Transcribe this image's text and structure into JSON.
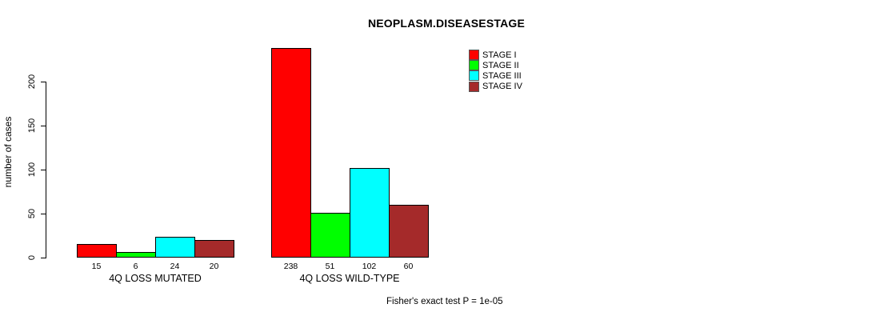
{
  "chart_data": {
    "type": "bar",
    "title": "NEOPLASM.DISEASESTAGE",
    "groups": [
      "4Q LOSS MUTATED",
      "4Q LOSS WILD-TYPE"
    ],
    "series": [
      {
        "name": "STAGE I",
        "color": "#ff0000",
        "values": [
          15,
          238
        ]
      },
      {
        "name": "STAGE II",
        "color": "#00ff00",
        "values": [
          6,
          51
        ]
      },
      {
        "name": "STAGE III",
        "color": "#00ffff",
        "values": [
          24,
          102
        ]
      },
      {
        "name": "STAGE IV",
        "color": "#a52a2a",
        "values": [
          20,
          60
        ]
      }
    ],
    "xlabel": "",
    "ylabel": "number of cases",
    "yticks": [
      0,
      50,
      100,
      150,
      200
    ],
    "ylim": [
      0,
      240
    ],
    "grid": false,
    "legend_position": "top-right",
    "bar_value_labels_shown": true
  },
  "annotation": "Fisher's exact test P = 1e-05"
}
